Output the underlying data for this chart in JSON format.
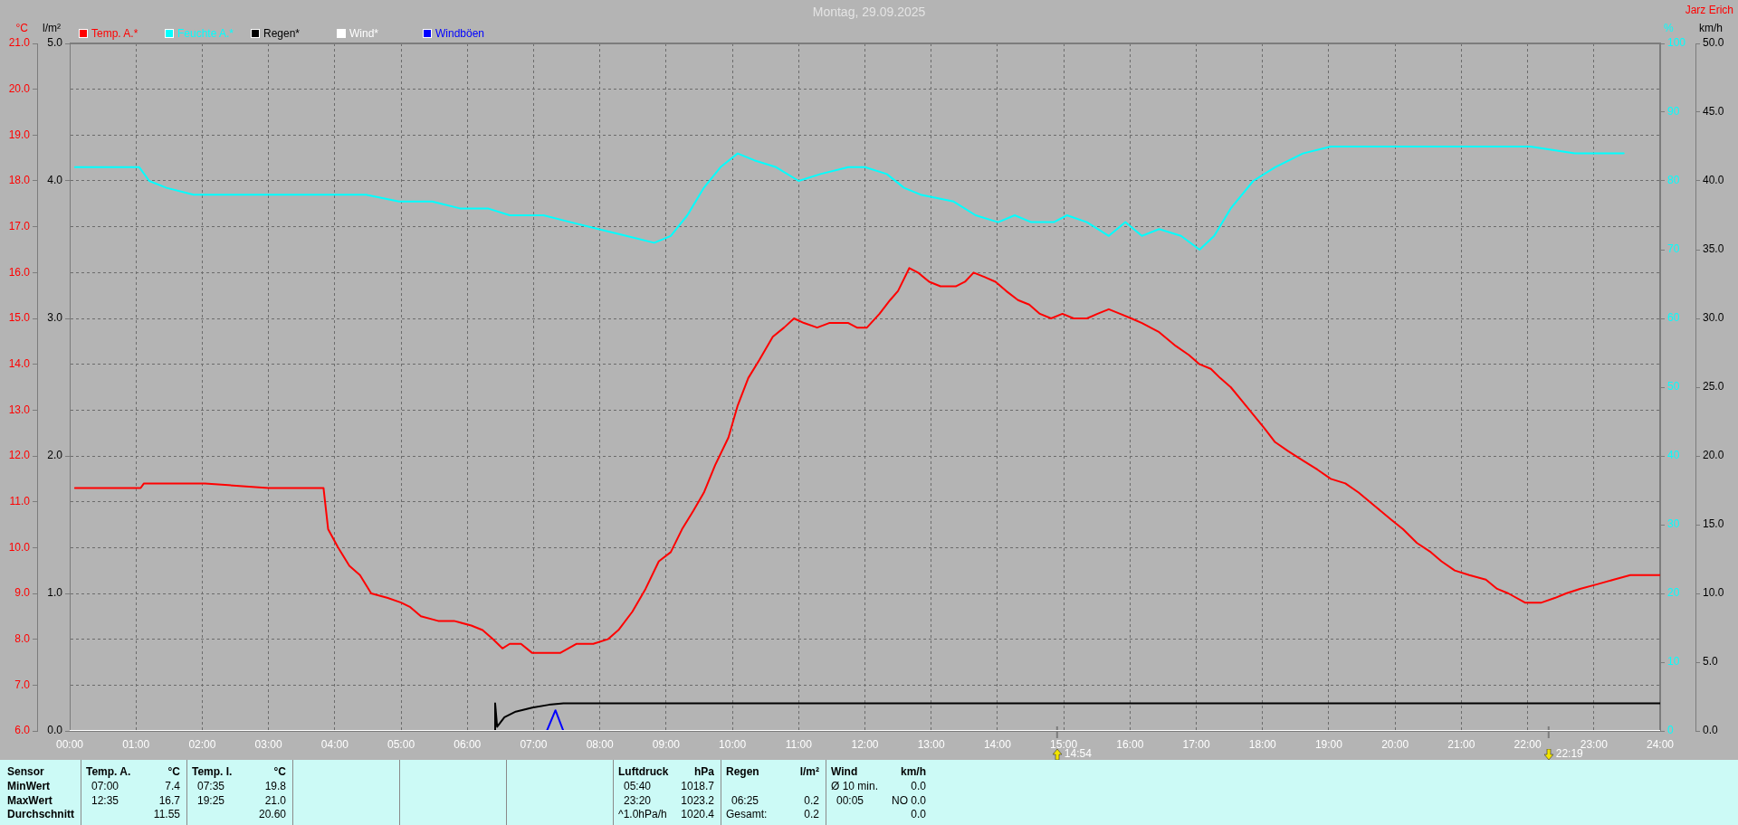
{
  "chart_data": [
    {
      "type": "line",
      "title": "Montag, 29.09.2025",
      "ylabel": "°C",
      "y2label": "l/m²",
      "y3label": "%",
      "annotations": [
        "Jarz Erich",
        "14:54",
        "22:19"
      ],
      "xlim": [
        0,
        24
      ],
      "xticks": [
        {
          "value": 0,
          "label": "00:00"
        },
        {
          "value": 1,
          "label": "01:00"
        },
        {
          "value": 2,
          "label": "02:00"
        },
        {
          "value": 3,
          "label": "03:00"
        },
        {
          "value": 4,
          "label": "04:00"
        },
        {
          "value": 5,
          "label": "05:00"
        },
        {
          "value": 6,
          "label": "06:00"
        },
        {
          "value": 7,
          "label": "07:00"
        },
        {
          "value": 8,
          "label": "08:00"
        },
        {
          "value": 9,
          "label": "09:00"
        },
        {
          "value": 10,
          "label": "10:00"
        },
        {
          "value": 11,
          "label": "11:00"
        },
        {
          "value": 12,
          "label": "12:00"
        },
        {
          "value": 13,
          "label": "13:00"
        },
        {
          "value": 14,
          "label": "14:00"
        },
        {
          "value": 15,
          "label": "15:00"
        },
        {
          "value": 16,
          "label": "16:00"
        },
        {
          "value": 17,
          "label": "17:00"
        },
        {
          "value": 18,
          "label": "18:00"
        },
        {
          "value": 19,
          "label": "19:00"
        },
        {
          "value": 20,
          "label": "20:00"
        },
        {
          "value": 21,
          "label": "21:00"
        },
        {
          "value": 22,
          "label": "22:00"
        },
        {
          "value": 23,
          "label": "23:00"
        },
        {
          "value": 24,
          "label": "24:00"
        }
      ],
      "ylim": [
        6,
        21
      ],
      "yticks": [
        {
          "value": 6,
          "label": "6.0"
        },
        {
          "value": 7,
          "label": "7.0"
        },
        {
          "value": 8,
          "label": "8.0"
        },
        {
          "value": 9,
          "label": "9.0"
        },
        {
          "value": 10,
          "label": "10.0"
        },
        {
          "value": 11,
          "label": "11.0"
        },
        {
          "value": 12,
          "label": "12.0"
        },
        {
          "value": 13,
          "label": "13.0"
        },
        {
          "value": 14,
          "label": "14.0"
        },
        {
          "value": 15,
          "label": "15.0"
        },
        {
          "value": 16,
          "label": "16.0"
        },
        {
          "value": 17,
          "label": "17.0"
        },
        {
          "value": 18,
          "label": "18.0"
        },
        {
          "value": 19,
          "label": "19.0"
        },
        {
          "value": 20,
          "label": "20.0"
        },
        {
          "value": 21,
          "label": "21.0"
        }
      ],
      "y2lim": [
        0,
        5
      ],
      "y2ticks": [
        {
          "value": 0,
          "label": "0.0"
        },
        {
          "value": 1,
          "label": "1.0"
        },
        {
          "value": 2,
          "label": "2.0"
        },
        {
          "value": 3,
          "label": "3.0"
        },
        {
          "value": 4,
          "label": "4.0"
        },
        {
          "value": 5,
          "label": "5.0"
        }
      ],
      "y3lim": [
        0,
        100
      ],
      "y3ticks": [
        0,
        10,
        20,
        30,
        40,
        50,
        60,
        70,
        80,
        90,
        100
      ],
      "grid": true,
      "legend": "top left",
      "series": [
        {
          "name": "Temp. A.*",
          "color": "#ff0000",
          "x": [
            0.08,
            1.07,
            1.12,
            1.96,
            2.04,
            3.0,
            3.83,
            3.9,
            4.05,
            4.22,
            4.38,
            4.55,
            4.8,
            5.0,
            5.14,
            5.3,
            5.56,
            5.8,
            6.06,
            6.23,
            6.39,
            6.53,
            6.64,
            6.81,
            6.98,
            7.15,
            7.4,
            7.65,
            7.9,
            8.12,
            8.28,
            8.49,
            8.69,
            8.89,
            9.07,
            9.24,
            9.41,
            9.57,
            9.74,
            9.94,
            10.08,
            10.24,
            10.41,
            10.61,
            10.78,
            10.93,
            11.08,
            11.28,
            11.46,
            11.61,
            11.75,
            11.88,
            12.03,
            12.22,
            12.38,
            12.5,
            12.67,
            12.8,
            12.97,
            13.14,
            13.37,
            13.51,
            13.64,
            13.81,
            13.97,
            14.13,
            14.31,
            14.48,
            14.64,
            14.81,
            14.98,
            15.15,
            15.35,
            15.51,
            15.68,
            15.85,
            16.02,
            16.18,
            16.44,
            16.69,
            16.89,
            17.05,
            17.22,
            17.36,
            17.52,
            17.69,
            17.86,
            18.03,
            18.19,
            18.39,
            18.61,
            18.83,
            19.03,
            19.25,
            19.45,
            19.7,
            19.95,
            20.12,
            20.33,
            20.54,
            20.7,
            20.9,
            21.12,
            21.37,
            21.54,
            21.71,
            21.96,
            22.21,
            22.41,
            22.58,
            22.79,
            23.05,
            23.3,
            23.55,
            23.72,
            24
          ],
          "values": [
            11.3,
            11.3,
            11.4,
            11.4,
            11.4,
            11.3,
            11.3,
            10.4,
            10.0,
            9.6,
            9.4,
            9.0,
            8.9,
            8.8,
            8.7,
            8.5,
            8.4,
            8.4,
            8.3,
            8.2,
            8.0,
            7.8,
            7.9,
            7.9,
            7.7,
            7.7,
            7.7,
            7.9,
            7.9,
            8.0,
            8.2,
            8.6,
            9.1,
            9.7,
            9.9,
            10.4,
            10.8,
            11.2,
            11.8,
            12.4,
            13.1,
            13.7,
            14.1,
            14.6,
            14.8,
            15.0,
            14.9,
            14.8,
            14.9,
            14.9,
            14.9,
            14.8,
            14.8,
            15.1,
            15.4,
            15.6,
            16.1,
            16.0,
            15.8,
            15.7,
            15.7,
            15.8,
            16.0,
            15.9,
            15.8,
            15.6,
            15.4,
            15.3,
            15.1,
            15.0,
            15.1,
            15.0,
            15.0,
            15.1,
            15.2,
            15.1,
            15.0,
            14.9,
            14.7,
            14.4,
            14.2,
            14.0,
            13.9,
            13.7,
            13.5,
            13.2,
            12.9,
            12.6,
            12.3,
            12.1,
            11.9,
            11.7,
            11.5,
            11.4,
            11.2,
            10.9,
            10.6,
            10.4,
            10.1,
            9.9,
            9.7,
            9.5,
            9.4,
            9.3,
            9.1,
            9.0,
            8.8,
            8.8,
            8.9,
            9.0,
            9.1,
            9.2,
            9.3,
            9.4,
            9.4,
            9.4
          ]
        },
        {
          "name": "Feuchte A.*",
          "color": "#00ffff",
          "axis": "y3",
          "x": [
            0.08,
            1.05,
            1.2,
            1.46,
            1.87,
            2.29,
            3.13,
            3.97,
            4.47,
            4.97,
            5.47,
            5.89,
            6.31,
            6.64,
            7.15,
            7.56,
            7.98,
            8.4,
            8.82,
            9.07,
            9.32,
            9.57,
            9.82,
            10.08,
            10.33,
            10.66,
            11.0,
            11.33,
            11.75,
            12.0,
            12.33,
            12.59,
            12.84,
            13.34,
            13.67,
            14.01,
            14.26,
            14.51,
            14.85,
            15.05,
            15.35,
            15.68,
            15.93,
            16.18,
            16.44,
            16.77,
            17.05,
            17.27,
            17.52,
            17.86,
            18.19,
            18.61,
            19.03,
            19.87,
            20.7,
            21.54,
            22.04,
            22.71,
            23.45
          ],
          "values": [
            82,
            82,
            80,
            79,
            78,
            78,
            78,
            78,
            78,
            77,
            77,
            76,
            76,
            75,
            75,
            74,
            73,
            72,
            71,
            72,
            75,
            79,
            82,
            84,
            83,
            82,
            80,
            81,
            82,
            82,
            81,
            79,
            78,
            77,
            75,
            74,
            75,
            74,
            74,
            75,
            74,
            72,
            74,
            72,
            73,
            72,
            70,
            72,
            76,
            80,
            82,
            84,
            85,
            85,
            85,
            85,
            85,
            84,
            84
          ]
        },
        {
          "name": "Regen*",
          "color": "#000000",
          "axis": "y2",
          "x": [
            0,
            6.4,
            6.42,
            6.42,
            6.45,
            6.56,
            6.73,
            6.98,
            7.23,
            7.45,
            24
          ],
          "values": [
            0,
            0,
            0,
            0.2,
            0.03,
            0.1,
            0.14,
            0.17,
            0.19,
            0.2,
            0.2
          ]
        }
      ]
    },
    {
      "type": "line",
      "ylabel": "km/h",
      "xlim": [
        0,
        24
      ],
      "tick_labels": "y",
      "legend": "top left",
      "ylim": [
        0,
        50
      ],
      "yticks": [
        {
          "value": 0,
          "label": "0.0"
        },
        {
          "value": 5,
          "label": "5.0"
        },
        {
          "value": 10,
          "label": "10.0"
        },
        {
          "value": 15,
          "label": "15.0"
        },
        {
          "value": 20,
          "label": "20.0"
        },
        {
          "value": 25,
          "label": "25.0"
        },
        {
          "value": 30,
          "label": "30.0"
        },
        {
          "value": 35,
          "label": "35.0"
        },
        {
          "value": 40,
          "label": "40.0"
        },
        {
          "value": 45,
          "label": "45.0"
        },
        {
          "value": 50,
          "label": "50.0"
        }
      ],
      "series": [
        {
          "name": "Wind*",
          "color": "#ffffff",
          "x": [
            0,
            24
          ],
          "values": [
            0,
            0
          ]
        },
        {
          "name": "Windböen",
          "color": "#0000ff",
          "x": [
            7.2,
            7.33,
            7.45
          ],
          "values": [
            0,
            1.5,
            0
          ]
        }
      ]
    },
    {
      "type": "other",
      "annotations": [
        "Sensor",
        "Temp. A.",
        "°C",
        "Temp. I.",
        "°C",
        "Luftdruck",
        "hPa",
        "Regen",
        "l/m²",
        "Wind",
        "km/h",
        "MinWert",
        "07:00",
        "7.4",
        "07:35",
        "19.8",
        "05:40",
        "1018.7",
        "Ø 10 min.",
        "0.0",
        "MaxWert",
        "12:35",
        "16.7",
        "19:25",
        "21.0",
        "23:20",
        "1023.2",
        "06:25",
        "0.2",
        "00:05",
        "NO 0.0",
        "Durchschnitt",
        "11.55",
        "20.60",
        "^1.0hPa/h",
        "1020.4",
        "Gesamt:",
        "0.2",
        "0.0"
      ]
    }
  ]
}
